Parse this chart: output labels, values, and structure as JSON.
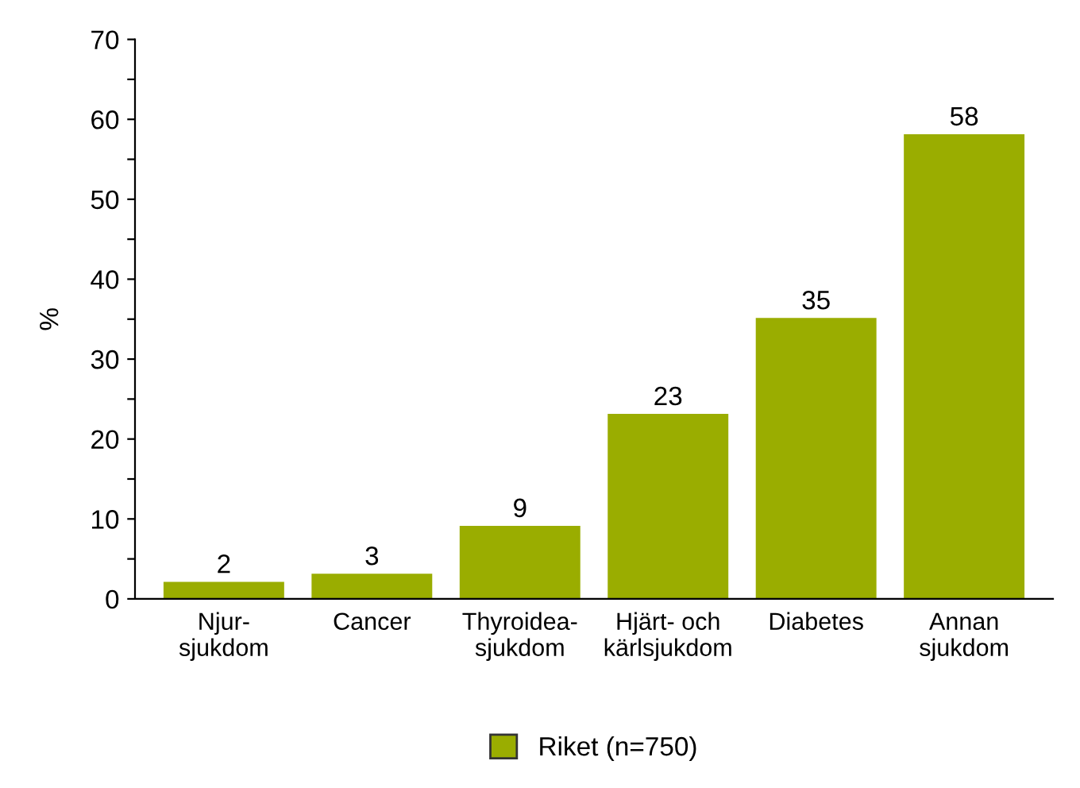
{
  "chart_data": {
    "type": "bar",
    "ylabel": "%",
    "categories": [
      "Njur-\nsjukdom",
      "Cancer",
      "Thyroidea-\nsjukdom",
      "Hjärt- och\nkärlsjukdom",
      "Diabetes",
      "Annan\nsjukdom"
    ],
    "series": [
      {
        "name": "Riket (n=750)",
        "color": "#9aad00",
        "values": [
          2,
          3,
          9,
          23,
          35,
          58
        ]
      }
    ],
    "ylim": [
      0,
      70
    ],
    "yticks": [
      0,
      {
        "value": 5,
        "label": null
      },
      10,
      {
        "value": 15,
        "label": null
      },
      20,
      {
        "value": 25,
        "label": null
      },
      30,
      {
        "value": 35,
        "label": null
      },
      40,
      {
        "value": 45,
        "label": null
      },
      50,
      {
        "value": 55,
        "label": null
      },
      60,
      {
        "value": 65,
        "label": null
      },
      70
    ],
    "data_labels": true,
    "grid": false,
    "legend": "bottom"
  }
}
